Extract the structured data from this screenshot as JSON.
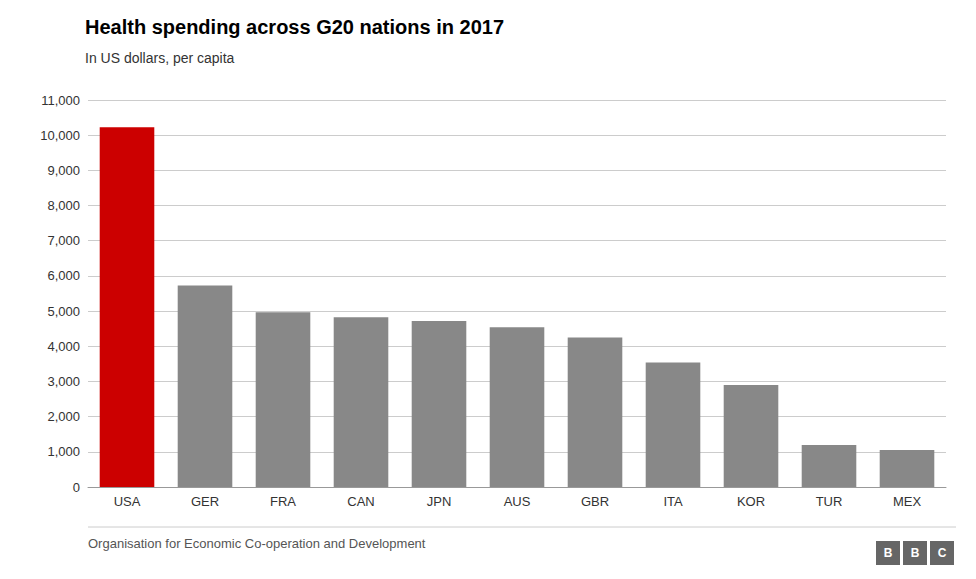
{
  "chart_data": {
    "type": "bar",
    "title": "Health spending across G20 nations in 2017",
    "subtitle": "In US dollars, per capita",
    "source": "Organisation for Economic Co-operation and Development",
    "annotations": [
      "BBC"
    ],
    "categories": [
      "USA",
      "GER",
      "FRA",
      "CAN",
      "JPN",
      "AUS",
      "GBR",
      "ITA",
      "KOR",
      "TUR",
      "MEX"
    ],
    "values": [
      10224,
      5728,
      4965,
      4826,
      4717,
      4543,
      4246,
      3542,
      2897,
      1193,
      1049
    ],
    "colors": [
      "#cc0000",
      "#888888",
      "#888888",
      "#888888",
      "#888888",
      "#888888",
      "#888888",
      "#888888",
      "#888888",
      "#888888",
      "#888888"
    ],
    "ylim": [
      0,
      11000
    ],
    "yticks": [
      0,
      {
        "value": 1000,
        "label": "1,000"
      },
      {
        "value": 2000,
        "label": "2,000"
      },
      {
        "value": 3000,
        "label": "3,000"
      },
      {
        "value": 4000,
        "label": "4,000"
      },
      {
        "value": 5000,
        "label": "5,000"
      },
      {
        "value": 6000,
        "label": "6,000"
      },
      {
        "value": 7000,
        "label": "7,000"
      },
      {
        "value": 8000,
        "label": "8,000"
      },
      {
        "value": 9000,
        "label": "9,000"
      },
      {
        "value": 10000,
        "label": "10,000"
      },
      {
        "value": 11000,
        "label": "11,000"
      }
    ],
    "grid": true
  }
}
